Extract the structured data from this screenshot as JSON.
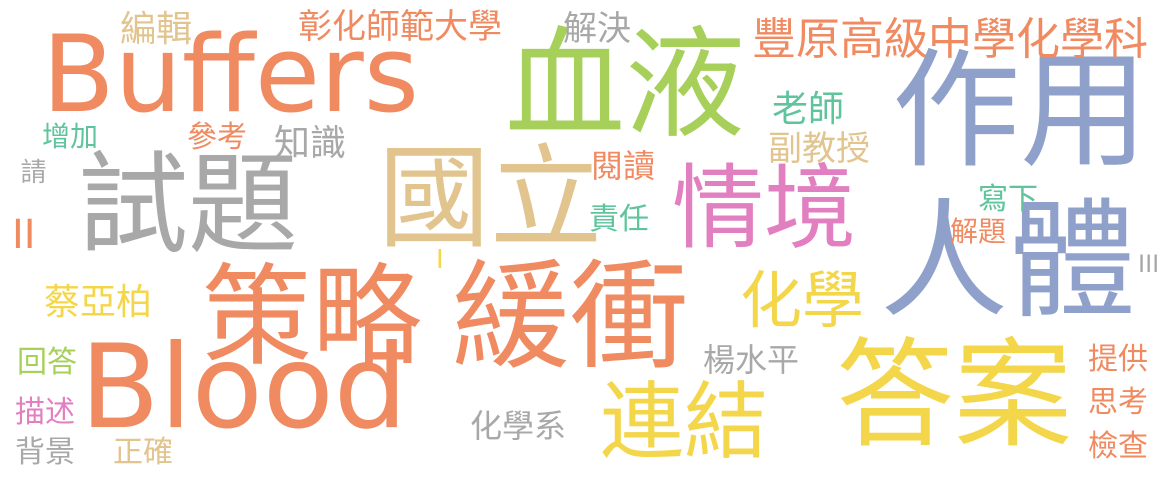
{
  "colors": {
    "orange": "#f08a60",
    "green": "#a6d05a",
    "blue": "#8fa1cb",
    "gray": "#a8a8a8",
    "tan": "#e2c48e",
    "pink": "#e17fc1",
    "yellow": "#f4d64a",
    "teal": "#5fc49b"
  },
  "words": {
    "buffers": "Buffers",
    "blood": "Blood",
    "xueye": "血液",
    "zuoyong": "作用",
    "shiti": "試題",
    "guoli": "國立",
    "qingjing": "情境",
    "renti": "人體",
    "celue": "策略",
    "huanchong": "緩衝",
    "daan": "答案",
    "lianjie": "連結",
    "huaxue": "化學",
    "bianji": "編輯",
    "changhua": "彰化師範大學",
    "jiejue": "解決",
    "fengyuan": "豐原高級中學化學科",
    "laoshi": "老師",
    "fujiaoshou": "副教授",
    "zengjia": "增加",
    "cankao": "參考",
    "zhishi": "知識",
    "yuedu": "閱讀",
    "qing": "請",
    "zeren": "責任",
    "xiexia": "寫下",
    "jieti": "解題",
    "ii": "II",
    "i": "I",
    "iii": "III",
    "caiyabo": "蔡亞柏",
    "yangshuiping": "楊水平",
    "huida": "回答",
    "miaoshu": "描述",
    "beijing": "背景",
    "zhengque": "正確",
    "huaxuexi": "化學系",
    "tigong": "提供",
    "sikao": "思考",
    "jiancha": "檢查"
  }
}
